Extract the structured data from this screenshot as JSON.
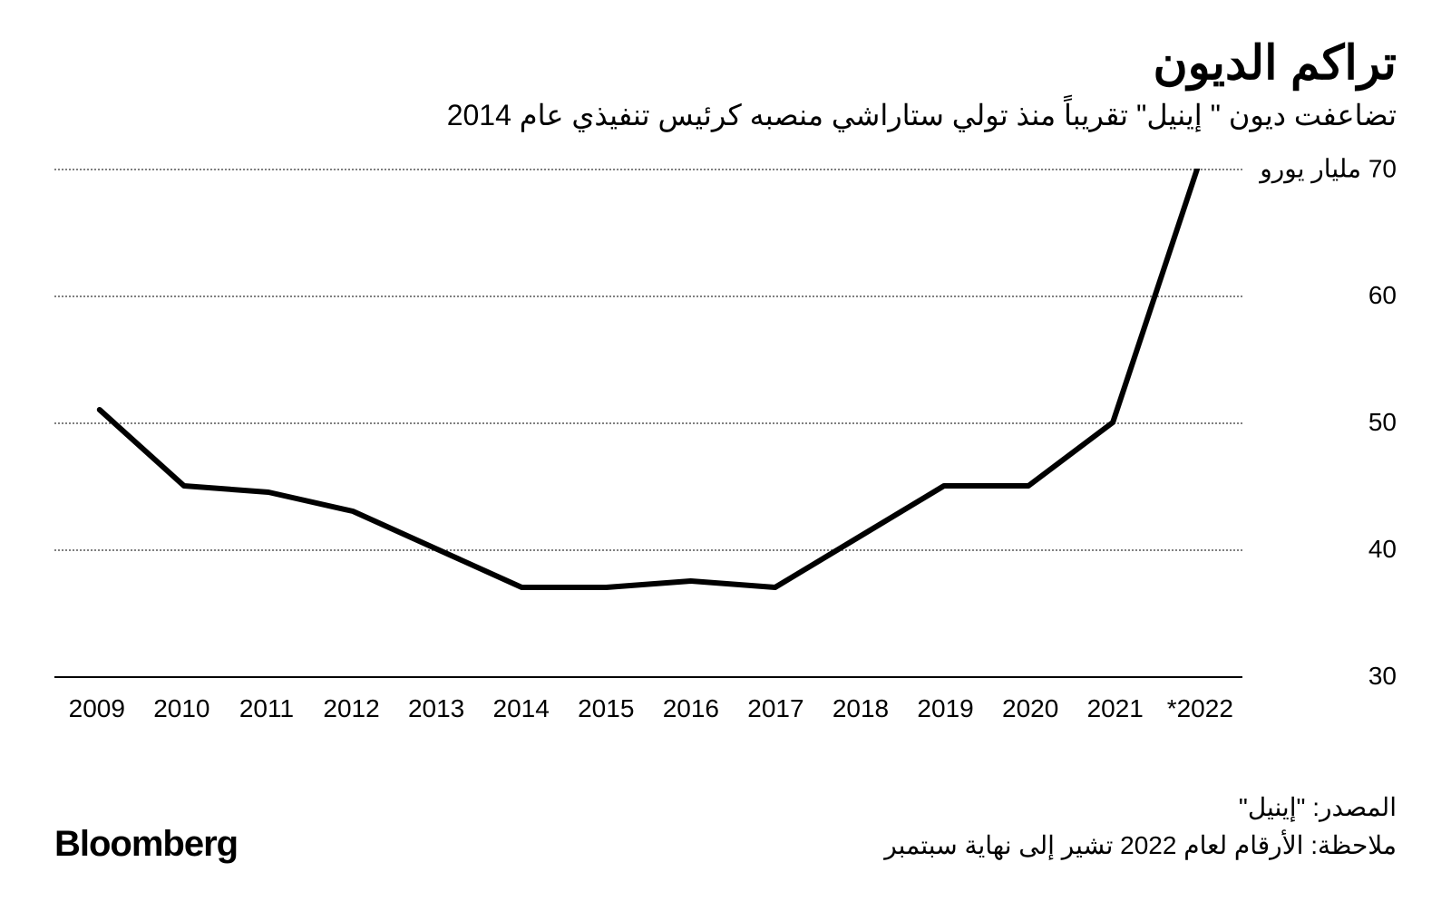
{
  "chart": {
    "type": "line",
    "title": "تراكم الديون",
    "subtitle": "تضاعفت ديون \" إينيل\" تقريباً منذ تولي ستاراشي منصبه كرئيس تنفيذي عام 2014",
    "x_labels": [
      "2009",
      "2010",
      "2011",
      "2012",
      "2013",
      "2014",
      "2015",
      "2016",
      "2017",
      "2018",
      "2019",
      "2020",
      "2021",
      "*2022"
    ],
    "y_values": [
      51,
      45,
      44.5,
      43,
      40,
      37,
      37,
      37.5,
      37,
      41,
      45,
      45,
      50,
      70
    ],
    "y_ticks": [
      30,
      40,
      50,
      60,
      70
    ],
    "y_unit_label": "مليار يورو",
    "ylim": [
      30,
      70
    ],
    "line_color": "#000000",
    "line_width": 6,
    "grid_color": "#808080",
    "baseline_color": "#000000",
    "background_color": "#ffffff",
    "title_fontsize": 52,
    "subtitle_fontsize": 32,
    "axis_label_fontsize": 28,
    "footer_fontsize": 28
  },
  "footer": {
    "source": "المصدر: \"إينيل\"",
    "note": "ملاحظة: الأرقام لعام 2022 تشير إلى نهاية سبتمبر",
    "brand": "Bloomberg"
  }
}
